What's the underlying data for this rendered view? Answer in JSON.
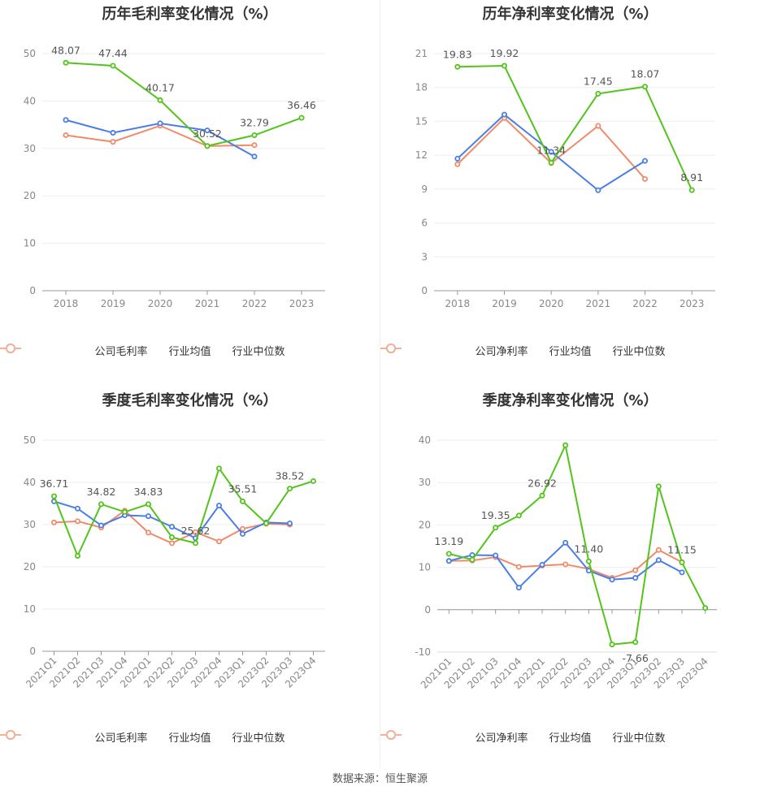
{
  "source_text": "数据来源：恒生聚源",
  "legend": {
    "gross": [
      "公司毛利率",
      "行业均值",
      "行业中位数"
    ],
    "net": [
      "公司净利率",
      "行业均值",
      "行业中位数"
    ]
  },
  "colors": {
    "company": "#52c41a",
    "mean": "#4a7ee6",
    "median": "#f08b6a"
  },
  "chart_data": [
    {
      "type": "line",
      "title": "历年毛利率变化情况（%）",
      "categories": [
        "2018",
        "2019",
        "2020",
        "2021",
        "2022",
        "2023"
      ],
      "ylim": [
        0,
        50
      ],
      "yticks": [
        0,
        10,
        20,
        30,
        40,
        50
      ],
      "series": [
        {
          "name": "公司毛利率",
          "values": [
            48.07,
            47.44,
            40.17,
            30.52,
            32.79,
            36.46
          ]
        },
        {
          "name": "行业均值",
          "values": [
            36.0,
            33.3,
            35.3,
            33.8,
            28.3,
            null
          ]
        },
        {
          "name": "行业中位数",
          "values": [
            32.8,
            31.4,
            34.8,
            30.5,
            30.7,
            null
          ]
        }
      ],
      "labels": [
        "48.07",
        "47.44",
        "40.17",
        "30.52",
        "32.79",
        "36.46"
      ]
    },
    {
      "type": "line",
      "title": "历年净利率变化情况（%）",
      "categories": [
        "2018",
        "2019",
        "2020",
        "2021",
        "2022",
        "2023"
      ],
      "ylim": [
        0,
        21
      ],
      "yticks": [
        0,
        3,
        6,
        9,
        12,
        15,
        18,
        21
      ],
      "series": [
        {
          "name": "公司净利率",
          "values": [
            19.83,
            19.92,
            11.34,
            17.45,
            18.07,
            8.91
          ]
        },
        {
          "name": "行业均值",
          "values": [
            11.7,
            15.6,
            12.3,
            8.9,
            11.5,
            null
          ]
        },
        {
          "name": "行业中位数",
          "values": [
            11.2,
            15.3,
            11.3,
            14.6,
            9.9,
            null
          ]
        }
      ],
      "labels": [
        "19.83",
        "19.92",
        "11.34",
        "17.45",
        "18.07",
        "8.91"
      ]
    },
    {
      "type": "line",
      "title": "季度毛利率变化情况（%）",
      "categories": [
        "2021Q1",
        "2021Q2",
        "2021Q3",
        "2021Q4",
        "2022Q1",
        "2022Q2",
        "2022Q3",
        "2022Q4",
        "2023Q1",
        "2023Q2",
        "2023Q3",
        "2023Q4"
      ],
      "ylim": [
        0,
        50
      ],
      "yticks": [
        0,
        10,
        20,
        30,
        40,
        50
      ],
      "series": [
        {
          "name": "公司毛利率",
          "values": [
            36.71,
            22.6,
            34.82,
            33.0,
            34.83,
            27.0,
            25.62,
            43.3,
            35.51,
            30.3,
            38.52,
            40.3
          ]
        },
        {
          "name": "行业均值",
          "values": [
            35.5,
            33.8,
            29.8,
            32.2,
            32.0,
            29.5,
            26.8,
            34.5,
            27.8,
            30.5,
            30.3,
            null
          ]
        },
        {
          "name": "行业中位数",
          "values": [
            30.5,
            30.8,
            29.3,
            33.3,
            28.1,
            25.6,
            28.2,
            26.0,
            29.0,
            30.2,
            30.0,
            null
          ]
        }
      ],
      "labels": [
        "36.71",
        "",
        "34.82",
        "",
        "34.83",
        "",
        "25.62",
        "",
        "35.51",
        "",
        "38.52",
        ""
      ]
    },
    {
      "type": "line",
      "title": "季度净利率变化情况（%）",
      "categories": [
        "2021Q1",
        "2021Q2",
        "2021Q3",
        "2021Q4",
        "2022Q1",
        "2022Q2",
        "2022Q3",
        "2022Q4",
        "2023Q1",
        "2023Q2",
        "2023Q3",
        "2023Q4"
      ],
      "ylim": [
        -10,
        40
      ],
      "yticks": [
        -10,
        0,
        10,
        20,
        30,
        40
      ],
      "series": [
        {
          "name": "公司净利率",
          "values": [
            13.19,
            11.8,
            19.35,
            22.2,
            26.92,
            38.8,
            11.4,
            -8.2,
            -7.66,
            29.1,
            11.15,
            0.4
          ]
        },
        {
          "name": "行业均值",
          "values": [
            11.5,
            12.9,
            12.8,
            5.2,
            10.6,
            15.8,
            9.2,
            7.1,
            7.5,
            11.7,
            8.8,
            null
          ]
        },
        {
          "name": "行业中位数",
          "values": [
            11.5,
            11.6,
            12.4,
            10.1,
            10.4,
            10.7,
            9.6,
            7.5,
            9.3,
            14.1,
            11.2,
            null
          ]
        }
      ],
      "labels": [
        "13.19",
        "",
        "19.35",
        "",
        "26.92",
        "",
        "11.40",
        "",
        "-7.66",
        "",
        "11.15",
        ""
      ]
    }
  ]
}
